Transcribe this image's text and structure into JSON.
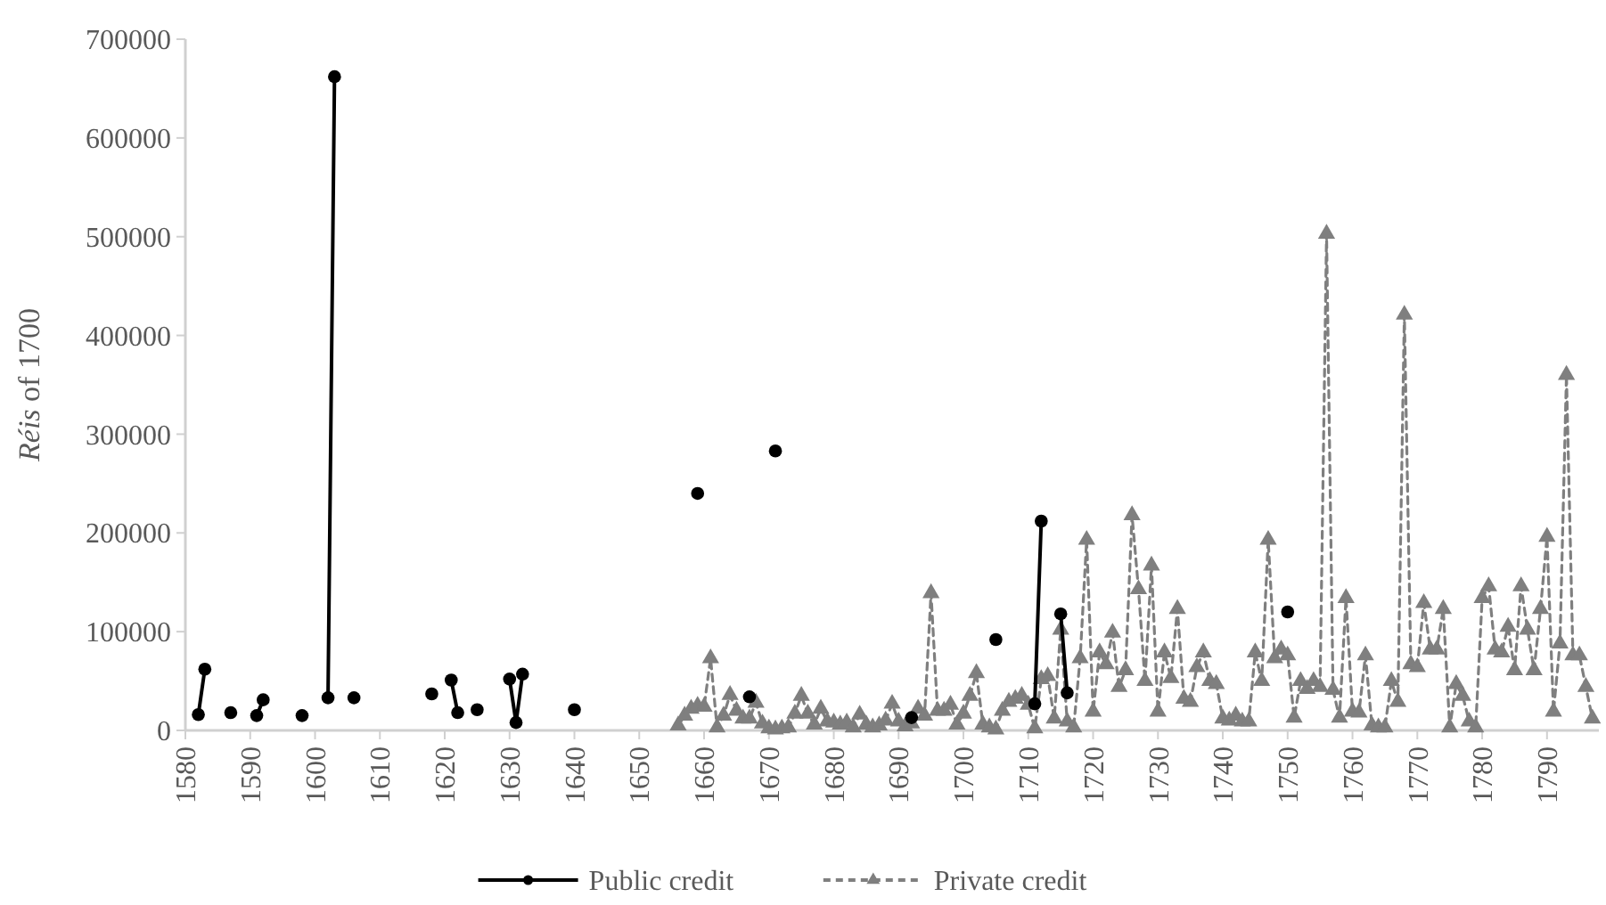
{
  "chart_data": {
    "type": "line",
    "ylabel": "Réis of 1700",
    "xlim": [
      1580,
      1798
    ],
    "xticks": [
      1580,
      1590,
      1600,
      1610,
      1620,
      1630,
      1640,
      1650,
      1660,
      1670,
      1680,
      1690,
      1700,
      1710,
      1720,
      1730,
      1740,
      1750,
      1760,
      1770,
      1780,
      1790
    ],
    "ylim": [
      0,
      700000
    ],
    "yticks": [
      0,
      100000,
      200000,
      300000,
      400000,
      500000,
      600000,
      700000
    ],
    "grid": false,
    "legend": "bottom",
    "series": [
      {
        "name": "Public credit",
        "color": "#000000",
        "marker": "circle",
        "line_style": "solid",
        "x": [
          1582,
          1583,
          1584,
          1587,
          1588,
          1591,
          1592,
          1593,
          1598,
          1599,
          1602,
          1603,
          1604,
          1606,
          1607,
          1618,
          1619,
          1621,
          1622,
          1623,
          1625,
          1626,
          1630,
          1631,
          1632,
          1633,
          1640,
          1641,
          1659,
          1660,
          1667,
          1668,
          1671,
          1672,
          1692,
          1693,
          1705,
          1706,
          1711,
          1712,
          1713,
          1715,
          1716,
          1717,
          1750
        ],
        "values": [
          16000,
          62000,
          null,
          18000,
          null,
          15000,
          31000,
          null,
          15000,
          null,
          33000,
          662000,
          null,
          33000,
          null,
          37000,
          null,
          51000,
          18000,
          null,
          21000,
          null,
          52000,
          8000,
          57000,
          null,
          21000,
          null,
          240000,
          null,
          34000,
          null,
          283000,
          null,
          13000,
          null,
          92000,
          null,
          27000,
          212000,
          null,
          118000,
          38000,
          null,
          120000
        ]
      },
      {
        "name": "Private credit",
        "color": "#7f7f7f",
        "marker": "triangle",
        "line_style": "dashed",
        "x": [
          1656,
          1657,
          1658,
          1659,
          1660,
          1661,
          1662,
          1663,
          1664,
          1665,
          1666,
          1667,
          1668,
          1669,
          1670,
          1671,
          1672,
          1673,
          1674,
          1675,
          1676,
          1677,
          1678,
          1679,
          1680,
          1681,
          1682,
          1683,
          1684,
          1685,
          1686,
          1687,
          1688,
          1689,
          1690,
          1691,
          1692,
          1693,
          1694,
          1695,
          1696,
          1697,
          1698,
          1699,
          1700,
          1701,
          1702,
          1703,
          1704,
          1705,
          1706,
          1707,
          1708,
          1709,
          1710,
          1711,
          1712,
          1713,
          1714,
          1715,
          1716,
          1717,
          1718,
          1719,
          1720,
          1721,
          1722,
          1723,
          1724,
          1725,
          1726,
          1727,
          1728,
          1729,
          1730,
          1731,
          1732,
          1733,
          1734,
          1735,
          1736,
          1737,
          1738,
          1739,
          1740,
          1741,
          1742,
          1743,
          1744,
          1745,
          1746,
          1747,
          1748,
          1749,
          1750,
          1751,
          1752,
          1753,
          1754,
          1755,
          1756,
          1757,
          1758,
          1759,
          1760,
          1761,
          1762,
          1763,
          1764,
          1765,
          1766,
          1767,
          1768,
          1769,
          1770,
          1771,
          1772,
          1773,
          1774,
          1775,
          1776,
          1777,
          1778,
          1779,
          1780,
          1781,
          1782,
          1783,
          1784,
          1785,
          1786,
          1787,
          1788,
          1789,
          1790,
          1791,
          1792,
          1793,
          1794,
          1795,
          1796,
          1797
        ],
        "values": [
          5000,
          15000,
          22000,
          25000,
          24000,
          73000,
          3000,
          15000,
          36000,
          20000,
          12000,
          12000,
          28000,
          7000,
          2000,
          1000,
          2000,
          3000,
          17000,
          35000,
          17000,
          6000,
          22000,
          9000,
          8000,
          6000,
          8000,
          3000,
          16000,
          6000,
          3000,
          5000,
          10000,
          27000,
          9000,
          4000,
          7000,
          22000,
          15000,
          139000,
          20000,
          20000,
          26000,
          6000,
          17000,
          35000,
          58000,
          6000,
          3000,
          1000,
          20000,
          29000,
          32000,
          35000,
          26000,
          2000,
          52000,
          55000,
          12000,
          102000,
          9000,
          3000,
          73000,
          193000,
          19000,
          79000,
          67000,
          99000,
          44000,
          61000,
          218000,
          143000,
          50000,
          167000,
          19000,
          79000,
          53000,
          123000,
          32000,
          29000,
          64000,
          79000,
          50000,
          47000,
          12000,
          10000,
          15000,
          9000,
          9000,
          79000,
          50000,
          193000,
          73000,
          82000,
          76000,
          13000,
          50000,
          42000,
          50000,
          44000,
          503000,
          41000,
          13000,
          134000,
          19000,
          18000,
          76000,
          5000,
          3000,
          3000,
          50000,
          29000,
          421000,
          67000,
          64000,
          129000,
          82000,
          82000,
          123000,
          3000,
          47000,
          35000,
          9000,
          3000,
          134000,
          146000,
          82000,
          79000,
          105000,
          61000,
          146000,
          102000,
          61000,
          123000,
          196000,
          19000,
          88000,
          360000,
          76000,
          76000,
          44000,
          12000
        ]
      }
    ]
  }
}
